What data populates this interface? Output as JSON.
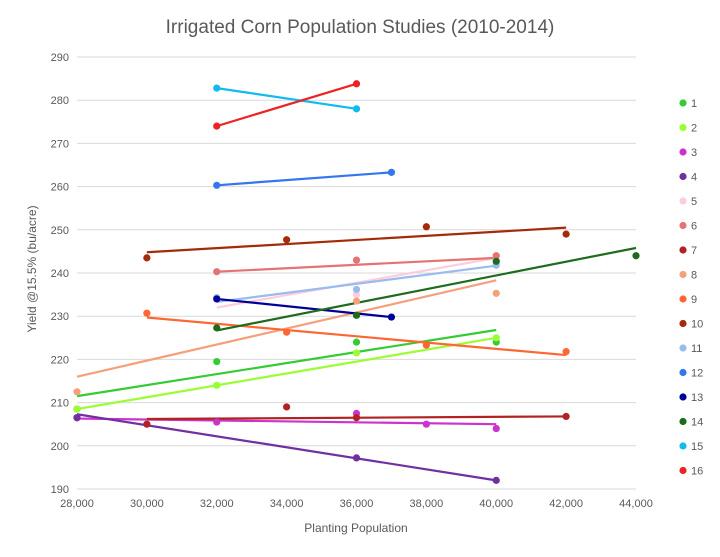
{
  "chart_data": {
    "type": "scatter",
    "title": "Irrigated Corn Population Studies (2010-2014)",
    "xlabel": "Planting Population",
    "ylabel": "Yield @15.5% (bu/acre)",
    "xlim": [
      28000,
      44000
    ],
    "ylim": [
      190,
      290
    ],
    "x_ticks": [
      28000,
      30000,
      32000,
      34000,
      36000,
      38000,
      40000,
      42000,
      44000
    ],
    "x_tick_labels": [
      "28,000",
      "30,000",
      "32,000",
      "34,000",
      "36,000",
      "38,000",
      "40,000",
      "42,000",
      "44,000"
    ],
    "y_ticks": [
      190,
      200,
      210,
      220,
      230,
      240,
      250,
      260,
      270,
      280,
      290
    ],
    "grid": "horizontal",
    "legend_position": "right",
    "series": [
      {
        "name": "1",
        "color": "#33cc33",
        "points": [
          [
            28000,
            208.5
          ],
          [
            32000,
            219.5
          ],
          [
            36000,
            224
          ],
          [
            40000,
            224
          ]
        ],
        "trend": [
          [
            28000,
            211.5
          ],
          [
            40000,
            226.8
          ]
        ]
      },
      {
        "name": "2",
        "color": "#99ff33",
        "points": [
          [
            28000,
            208.5
          ],
          [
            32000,
            214
          ],
          [
            36000,
            221.5
          ],
          [
            40000,
            225
          ]
        ],
        "trend": [
          [
            28000,
            208.5
          ],
          [
            40000,
            225
          ]
        ]
      },
      {
        "name": "3",
        "color": "#cc33cc",
        "points": [
          [
            28000,
            206.5
          ],
          [
            32000,
            205.5
          ],
          [
            36000,
            207.5
          ],
          [
            38000,
            205
          ],
          [
            40000,
            204
          ]
        ],
        "trend": [
          [
            28000,
            206.3
          ],
          [
            40000,
            205
          ]
        ]
      },
      {
        "name": "4",
        "color": "#7030a0",
        "points": [
          [
            28000,
            206.5
          ],
          [
            36000,
            197.2
          ],
          [
            40000,
            192
          ]
        ],
        "trend": [
          [
            28000,
            207.3
          ],
          [
            40000,
            192
          ]
        ]
      },
      {
        "name": "5",
        "color": "#ffccdd",
        "points": [
          [
            32000,
            234
          ],
          [
            36000,
            235
          ],
          [
            40000,
            243
          ]
        ],
        "trend": [
          [
            32000,
            232
          ],
          [
            40000,
            243.5
          ]
        ]
      },
      {
        "name": "6",
        "color": "#e57373",
        "points": [
          [
            32000,
            240.3
          ],
          [
            36000,
            243
          ],
          [
            40000,
            244
          ]
        ],
        "trend": [
          [
            32000,
            240.3
          ],
          [
            40000,
            243.5
          ]
        ]
      },
      {
        "name": "7",
        "color": "#b22222",
        "points": [
          [
            30000,
            205
          ],
          [
            34000,
            209
          ],
          [
            36000,
            206.5
          ],
          [
            42000,
            206.8
          ]
        ],
        "trend": [
          [
            30000,
            206.2
          ],
          [
            42000,
            206.8
          ]
        ]
      },
      {
        "name": "8",
        "color": "#f4a07a",
        "points": [
          [
            28000,
            212.5
          ],
          [
            36000,
            233.5
          ],
          [
            40000,
            235.3
          ]
        ],
        "trend": [
          [
            28000,
            216
          ],
          [
            40000,
            238.3
          ]
        ]
      },
      {
        "name": "9",
        "color": "#ff6633",
        "points": [
          [
            30000,
            230.7
          ],
          [
            34000,
            226.3
          ],
          [
            38000,
            223.3
          ],
          [
            42000,
            221.8
          ]
        ],
        "trend": [
          [
            30000,
            229.7
          ],
          [
            42000,
            221
          ]
        ]
      },
      {
        "name": "10",
        "color": "#a52a0a",
        "points": [
          [
            30000,
            243.5
          ],
          [
            34000,
            247.7
          ],
          [
            38000,
            250.7
          ],
          [
            42000,
            249
          ]
        ],
        "trend": [
          [
            30000,
            244.8
          ],
          [
            42000,
            250.5
          ]
        ]
      },
      {
        "name": "11",
        "color": "#99bbee",
        "points": [
          [
            32000,
            234.3
          ],
          [
            36000,
            236.2
          ],
          [
            40000,
            241.8
          ]
        ],
        "trend": [
          [
            32000,
            233.3
          ],
          [
            40000,
            241.7
          ]
        ]
      },
      {
        "name": "12",
        "color": "#3377ee",
        "points": [
          [
            32000,
            260.3
          ],
          [
            37000,
            263.3
          ]
        ],
        "trend": [
          [
            32000,
            260.3
          ],
          [
            37000,
            263.3
          ]
        ]
      },
      {
        "name": "13",
        "color": "#000099",
        "points": [
          [
            32000,
            234
          ],
          [
            37000,
            229.8
          ]
        ],
        "trend": [
          [
            32000,
            234
          ],
          [
            37000,
            229.8
          ]
        ]
      },
      {
        "name": "14",
        "color": "#1e6b1e",
        "points": [
          [
            32000,
            227.3
          ],
          [
            36000,
            230.2
          ],
          [
            40000,
            242.7
          ],
          [
            44000,
            244
          ]
        ],
        "trend": [
          [
            32000,
            226.7
          ],
          [
            44000,
            245.8
          ]
        ]
      },
      {
        "name": "15",
        "color": "#11bbee",
        "points": [
          [
            32000,
            282.8
          ],
          [
            36000,
            278
          ]
        ],
        "trend": [
          [
            32000,
            282.8
          ],
          [
            36000,
            278
          ]
        ]
      },
      {
        "name": "16",
        "color": "#ee2222",
        "points": [
          [
            32000,
            274
          ],
          [
            36000,
            283.8
          ]
        ],
        "trend": [
          [
            32000,
            274
          ],
          [
            36000,
            283.8
          ]
        ]
      }
    ]
  }
}
